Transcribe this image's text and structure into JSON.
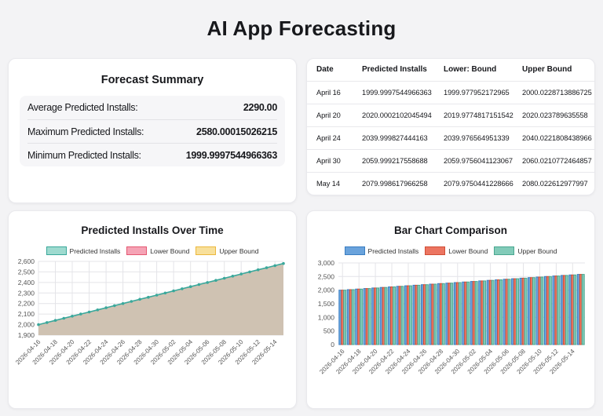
{
  "page": {
    "title": "AI App Forecasting",
    "background": "#f3f3f5"
  },
  "summary": {
    "title": "Forecast Summary",
    "rows": [
      {
        "label": "Average Predicted Installs:",
        "value": "2290.00"
      },
      {
        "label": "Maximum Predicted Installs:",
        "value": "2580.00015026215"
      },
      {
        "label": "Minimum Predicted Installs:",
        "value": "1999.9997544966363"
      }
    ]
  },
  "table": {
    "columns": [
      "Date",
      "Predicted Installs",
      "Lower: Bound",
      "Upper Bound"
    ],
    "rows": [
      [
        "April 16",
        "1999.9997544966363",
        "1999.977952172965",
        "2000.0228713886725"
      ],
      [
        "April 20",
        "2020.0002102045494",
        "2019.9774817151542",
        "2020.023789635558"
      ],
      [
        "April 24",
        "2039.999827444163",
        "2039.976564951339",
        "2040.0221808438966"
      ],
      [
        "April 30",
        "2059.999217558688",
        "2059.9756041123067",
        "2060.0210772464857"
      ],
      [
        "May 14",
        "2079.998617966258",
        "2079.9750441228666",
        "2080.022612977997"
      ]
    ]
  },
  "chart_data": [
    {
      "type": "area",
      "title": "Predicted Installs Over Time",
      "x_labels": [
        "2026-04-16",
        "2026-04-18",
        "2026-04-20",
        "2026-04-22",
        "2026-04-24",
        "2026-04-26",
        "2026-04-28",
        "2026-04-30",
        "2026-05-02",
        "2026-05-04",
        "2026-05-06",
        "2026-05-08",
        "2026-05-10",
        "2026-05-12",
        "2026-05-14"
      ],
      "n_points": 30,
      "ylim": [
        1900,
        2600
      ],
      "ytick_step": 100,
      "grid": true,
      "legend_position": "top",
      "area_overlap_color": "#cfc2b2",
      "series": [
        {
          "name": "Predicted Installs",
          "fill": "#9edacf",
          "border": "#3aa89b",
          "values": [
            2000,
            2020,
            2040,
            2060,
            2080,
            2100,
            2120,
            2140,
            2160,
            2180,
            2200,
            2220,
            2240,
            2260,
            2280,
            2300,
            2320,
            2340,
            2360,
            2380,
            2400,
            2420,
            2440,
            2460,
            2480,
            2500,
            2520,
            2540,
            2560,
            2580
          ]
        },
        {
          "name": "Lower Bound",
          "fill": "#f5a3b5",
          "border": "#e45871",
          "values": [
            2000,
            2020,
            2040,
            2060,
            2080,
            2100,
            2120,
            2140,
            2160,
            2180,
            2200,
            2220,
            2240,
            2260,
            2280,
            2300,
            2320,
            2340,
            2360,
            2380,
            2400,
            2420,
            2440,
            2460,
            2480,
            2500,
            2520,
            2540,
            2560,
            2580
          ]
        },
        {
          "name": "Upper Bound",
          "fill": "#f8e09b",
          "border": "#ecb83d",
          "values": [
            2000,
            2020,
            2040,
            2060,
            2080,
            2100,
            2120,
            2140,
            2160,
            2180,
            2200,
            2220,
            2240,
            2260,
            2280,
            2300,
            2320,
            2340,
            2360,
            2380,
            2400,
            2420,
            2440,
            2460,
            2480,
            2500,
            2520,
            2540,
            2560,
            2580
          ]
        }
      ]
    },
    {
      "type": "bar",
      "title": "Bar Chart Comparison",
      "x_labels": [
        "2026-04-16",
        "2026-04-18",
        "2026-04-20",
        "2026-04-22",
        "2026-04-24",
        "2026-04-26",
        "2026-04-28",
        "2026-04-30",
        "2026-05-02",
        "2026-05-04",
        "2026-05-06",
        "2026-05-08",
        "2026-05-10",
        "2026-05-12",
        "2026-05-14"
      ],
      "n_points": 30,
      "ylim": [
        0,
        3000
      ],
      "ytick_step": 500,
      "grid": true,
      "legend_position": "top",
      "series": [
        {
          "name": "Predicted Installs",
          "fill": "#6aa3dc",
          "border": "#3b7ec2",
          "values": [
            2000,
            2020,
            2040,
            2060,
            2080,
            2100,
            2120,
            2140,
            2160,
            2180,
            2200,
            2220,
            2240,
            2260,
            2280,
            2300,
            2320,
            2340,
            2360,
            2380,
            2400,
            2420,
            2440,
            2460,
            2480,
            2500,
            2520,
            2540,
            2560,
            2580
          ]
        },
        {
          "name": "Lower Bound",
          "fill": "#ec7561",
          "border": "#d14e36",
          "values": [
            2000,
            2020,
            2040,
            2060,
            2080,
            2100,
            2120,
            2140,
            2160,
            2180,
            2200,
            2220,
            2240,
            2260,
            2280,
            2300,
            2320,
            2340,
            2360,
            2380,
            2400,
            2420,
            2440,
            2460,
            2480,
            2500,
            2520,
            2540,
            2560,
            2580
          ]
        },
        {
          "name": "Upper Bound",
          "fill": "#82cbb9",
          "border": "#4aa890",
          "values": [
            2000,
            2020,
            2040,
            2060,
            2080,
            2100,
            2120,
            2140,
            2160,
            2180,
            2200,
            2220,
            2240,
            2260,
            2280,
            2300,
            2320,
            2340,
            2360,
            2380,
            2400,
            2420,
            2440,
            2460,
            2480,
            2500,
            2520,
            2540,
            2560,
            2580
          ]
        }
      ]
    }
  ]
}
